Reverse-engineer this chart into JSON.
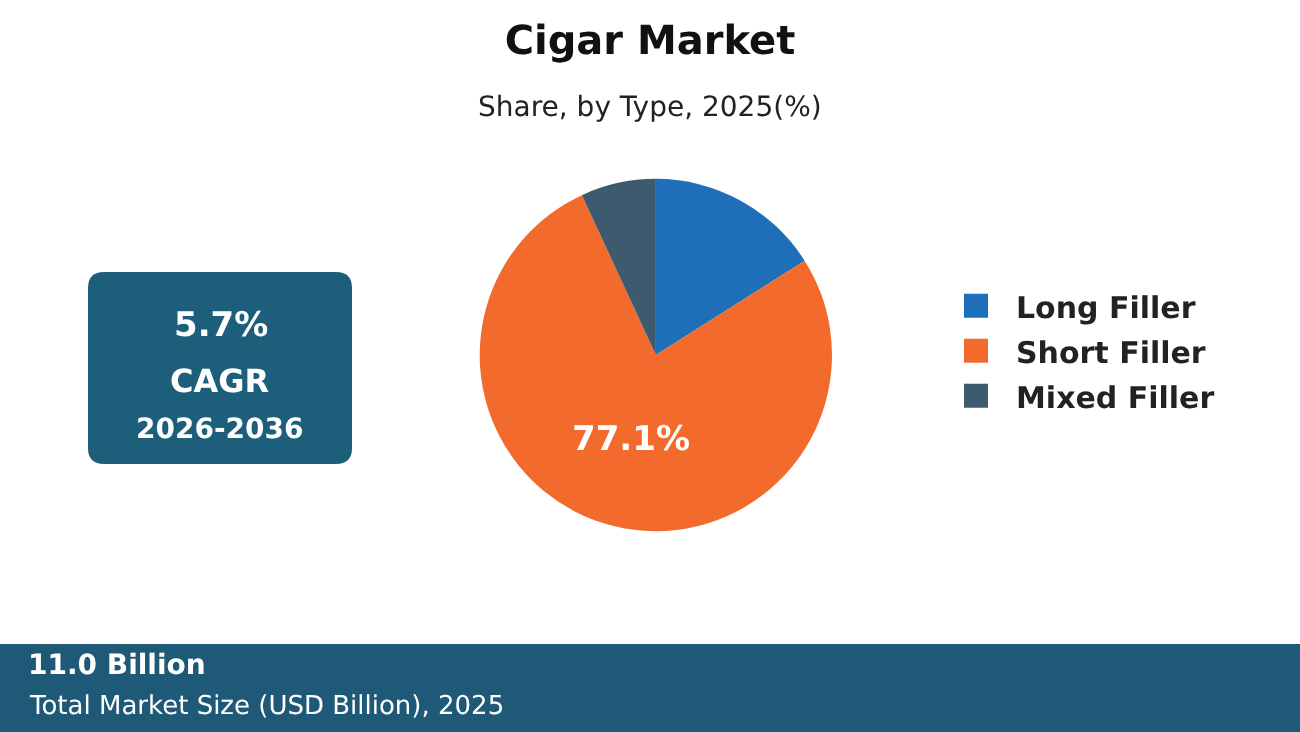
{
  "chart_data": {
    "type": "pie",
    "title": "Cigar Market",
    "subtitle": "Share, by Type, 2025(%)",
    "categories": [
      "Long Filler",
      "Short Filler",
      "Mixed Filler"
    ],
    "values": [
      16.0,
      77.1,
      6.9
    ],
    "colors": [
      "#1f6fb8",
      "#f26b2d",
      "#3d5a6e"
    ],
    "value_labels": [
      null,
      "77.1%",
      null
    ],
    "legend": "right",
    "annotations": [
      "5.7%",
      "CAGR",
      "2026-2036",
      "11.0 Billion",
      "Total Market Size (USD Billion), 2025"
    ]
  }
}
